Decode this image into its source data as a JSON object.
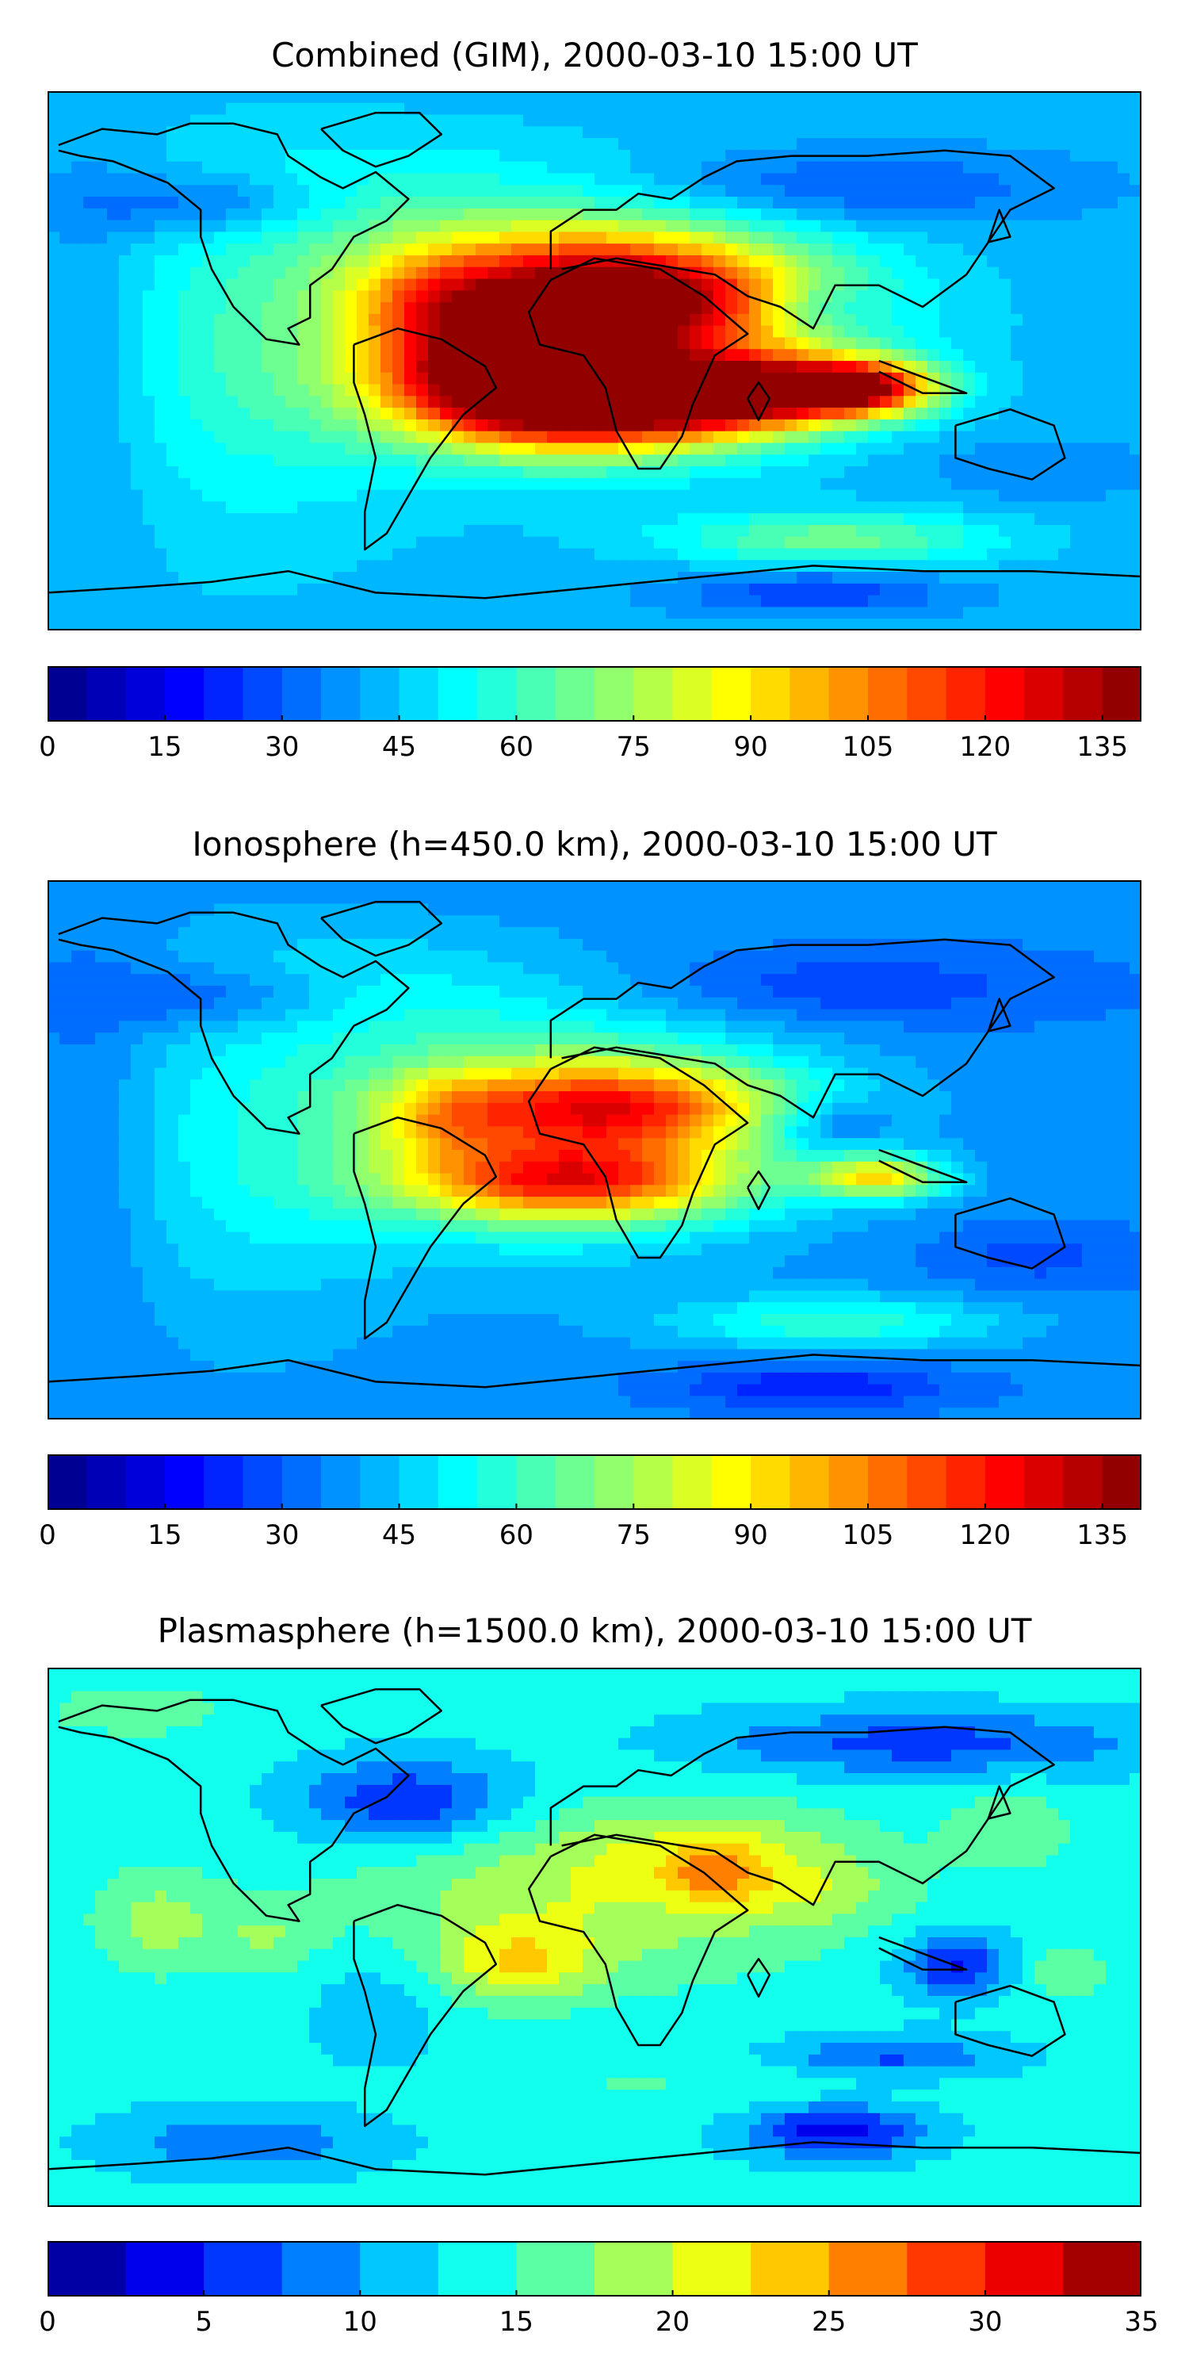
{
  "panels": [
    {
      "title": "Combined (GIM), 2000-03-10 15:00 UT",
      "colorbar": {
        "vmin": 0,
        "vmax": 140,
        "levels": 28,
        "colormap": "jet",
        "ticks": [
          "0",
          "15",
          "30",
          "45",
          "60",
          "75",
          "90",
          "105",
          "120",
          "135"
        ]
      }
    },
    {
      "title": "Ionosphere  (h=450.0 km), 2000-03-10 15:00 UT",
      "colorbar": {
        "vmin": 0,
        "vmax": 140,
        "levels": 28,
        "colormap": "jet",
        "ticks": [
          "0",
          "15",
          "30",
          "45",
          "60",
          "75",
          "90",
          "105",
          "120",
          "135"
        ]
      }
    },
    {
      "title": "Plasmasphere (h=1500.0 km), 2000-03-10 15:00 UT",
      "colorbar": {
        "vmin": 0,
        "vmax": 35,
        "levels": 14,
        "colormap": "jet",
        "ticks": [
          "0",
          "5",
          "10",
          "15",
          "20",
          "25",
          "30",
          "35"
        ]
      }
    }
  ]
}
